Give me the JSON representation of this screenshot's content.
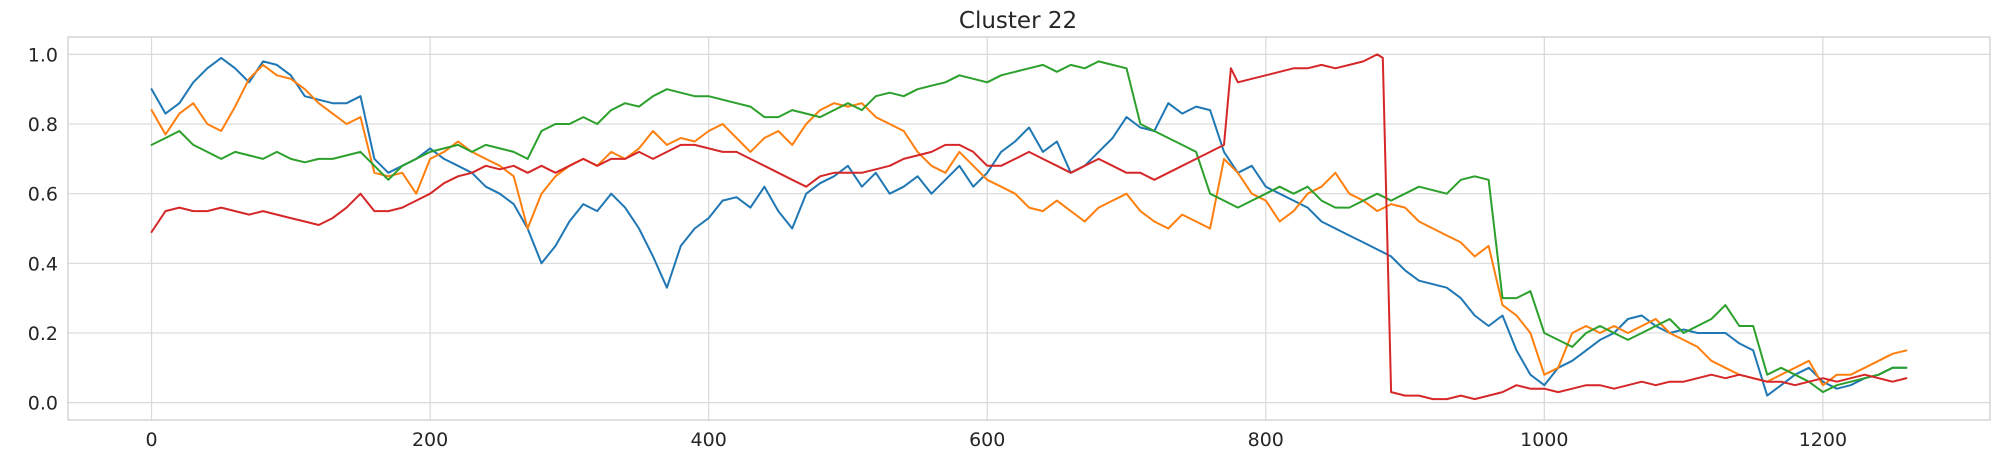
{
  "chart_data": {
    "type": "line",
    "title": "Cluster 22",
    "xlabel": "",
    "ylabel": "",
    "xlim": [
      -60,
      1320
    ],
    "ylim": [
      -0.05,
      1.05
    ],
    "xticks": [
      0,
      200,
      400,
      600,
      800,
      1000,
      1200
    ],
    "yticks": [
      0.0,
      0.2,
      0.4,
      0.6,
      0.8,
      1.0
    ],
    "xtick_labels": [
      "0",
      "200",
      "400",
      "600",
      "800",
      "1000",
      "1200"
    ],
    "ytick_labels": [
      "0.0",
      "0.2",
      "0.4",
      "0.6",
      "0.8",
      "1.0"
    ],
    "grid": true,
    "legend": "none",
    "series": [
      {
        "color": "#1f77b4",
        "x": [
          0,
          10,
          20,
          30,
          40,
          50,
          60,
          70,
          80,
          90,
          100,
          110,
          120,
          130,
          140,
          150,
          160,
          170,
          180,
          190,
          200,
          210,
          220,
          230,
          240,
          250,
          260,
          270,
          280,
          290,
          300,
          310,
          320,
          330,
          340,
          350,
          360,
          370,
          380,
          390,
          400,
          410,
          420,
          430,
          440,
          450,
          460,
          470,
          480,
          490,
          500,
          510,
          520,
          530,
          540,
          550,
          560,
          570,
          580,
          590,
          600,
          610,
          620,
          630,
          640,
          650,
          660,
          670,
          680,
          690,
          700,
          710,
          720,
          730,
          740,
          750,
          760,
          770,
          780,
          790,
          800,
          810,
          820,
          830,
          840,
          850,
          860,
          870,
          880,
          890,
          900,
          910,
          920,
          930,
          940,
          950,
          960,
          970,
          980,
          990,
          1000,
          1010,
          1020,
          1030,
          1040,
          1050,
          1060,
          1070,
          1080,
          1090,
          1100,
          1110,
          1120,
          1130,
          1140,
          1150,
          1160,
          1170,
          1180,
          1190,
          1200,
          1210,
          1220,
          1230,
          1240,
          1250,
          1260
        ],
        "y": [
          0.9,
          0.83,
          0.86,
          0.92,
          0.96,
          0.99,
          0.96,
          0.92,
          0.98,
          0.97,
          0.94,
          0.88,
          0.87,
          0.86,
          0.86,
          0.88,
          0.7,
          0.66,
          0.68,
          0.7,
          0.73,
          0.7,
          0.68,
          0.66,
          0.62,
          0.6,
          0.57,
          0.5,
          0.4,
          0.45,
          0.52,
          0.57,
          0.55,
          0.6,
          0.56,
          0.5,
          0.42,
          0.33,
          0.45,
          0.5,
          0.53,
          0.58,
          0.59,
          0.56,
          0.62,
          0.55,
          0.5,
          0.6,
          0.63,
          0.65,
          0.68,
          0.62,
          0.66,
          0.6,
          0.62,
          0.65,
          0.6,
          0.64,
          0.68,
          0.62,
          0.66,
          0.72,
          0.75,
          0.79,
          0.72,
          0.75,
          0.66,
          0.68,
          0.72,
          0.76,
          0.82,
          0.79,
          0.78,
          0.86,
          0.83,
          0.85,
          0.84,
          0.72,
          0.66,
          0.68,
          0.62,
          0.6,
          0.58,
          0.56,
          0.52,
          0.5,
          0.48,
          0.46,
          0.44,
          0.42,
          0.38,
          0.35,
          0.34,
          0.33,
          0.3,
          0.25,
          0.22,
          0.25,
          0.15,
          0.08,
          0.05,
          0.1,
          0.12,
          0.15,
          0.18,
          0.2,
          0.24,
          0.25,
          0.22,
          0.2,
          0.21,
          0.2,
          0.2,
          0.2,
          0.17,
          0.15,
          0.02,
          0.05,
          0.08,
          0.1,
          0.06,
          0.04,
          0.05,
          0.07,
          0.08,
          0.1,
          0.1
        ]
      },
      {
        "color": "#ff7f0e",
        "x": [
          0,
          10,
          20,
          30,
          40,
          50,
          60,
          70,
          80,
          90,
          100,
          110,
          120,
          130,
          140,
          150,
          160,
          170,
          180,
          190,
          200,
          210,
          220,
          230,
          240,
          250,
          260,
          270,
          280,
          290,
          300,
          310,
          320,
          330,
          340,
          350,
          360,
          370,
          380,
          390,
          400,
          410,
          420,
          430,
          440,
          450,
          460,
          470,
          480,
          490,
          500,
          510,
          520,
          530,
          540,
          550,
          560,
          570,
          580,
          590,
          600,
          610,
          620,
          630,
          640,
          650,
          660,
          670,
          680,
          690,
          700,
          710,
          720,
          730,
          740,
          750,
          760,
          770,
          780,
          790,
          800,
          810,
          820,
          830,
          840,
          850,
          860,
          870,
          880,
          890,
          900,
          910,
          920,
          930,
          940,
          950,
          960,
          970,
          980,
          990,
          1000,
          1010,
          1020,
          1030,
          1040,
          1050,
          1060,
          1070,
          1080,
          1090,
          1100,
          1110,
          1120,
          1130,
          1140,
          1150,
          1160,
          1170,
          1180,
          1190,
          1200,
          1210,
          1220,
          1230,
          1240,
          1250,
          1260
        ],
        "y": [
          0.84,
          0.77,
          0.83,
          0.86,
          0.8,
          0.78,
          0.85,
          0.93,
          0.97,
          0.94,
          0.93,
          0.9,
          0.86,
          0.83,
          0.8,
          0.82,
          0.66,
          0.65,
          0.66,
          0.6,
          0.7,
          0.72,
          0.75,
          0.72,
          0.7,
          0.68,
          0.65,
          0.5,
          0.6,
          0.65,
          0.68,
          0.7,
          0.68,
          0.72,
          0.7,
          0.73,
          0.78,
          0.74,
          0.76,
          0.75,
          0.78,
          0.8,
          0.76,
          0.72,
          0.76,
          0.78,
          0.74,
          0.8,
          0.84,
          0.86,
          0.85,
          0.86,
          0.82,
          0.8,
          0.78,
          0.72,
          0.68,
          0.66,
          0.72,
          0.68,
          0.64,
          0.62,
          0.6,
          0.56,
          0.55,
          0.58,
          0.55,
          0.52,
          0.56,
          0.58,
          0.6,
          0.55,
          0.52,
          0.5,
          0.54,
          0.52,
          0.5,
          0.7,
          0.66,
          0.6,
          0.58,
          0.52,
          0.55,
          0.6,
          0.62,
          0.66,
          0.6,
          0.58,
          0.55,
          0.57,
          0.56,
          0.52,
          0.5,
          0.48,
          0.46,
          0.42,
          0.45,
          0.28,
          0.25,
          0.2,
          0.08,
          0.1,
          0.2,
          0.22,
          0.2,
          0.22,
          0.2,
          0.22,
          0.24,
          0.2,
          0.18,
          0.16,
          0.12,
          0.1,
          0.08,
          0.07,
          0.06,
          0.08,
          0.1,
          0.12,
          0.05,
          0.08,
          0.08,
          0.1,
          0.12,
          0.14,
          0.15
        ]
      },
      {
        "color": "#2ca02c",
        "x": [
          0,
          10,
          20,
          30,
          40,
          50,
          60,
          70,
          80,
          90,
          100,
          110,
          120,
          130,
          140,
          150,
          160,
          170,
          180,
          190,
          200,
          210,
          220,
          230,
          240,
          250,
          260,
          270,
          280,
          290,
          300,
          310,
          320,
          330,
          340,
          350,
          360,
          370,
          380,
          390,
          400,
          410,
          420,
          430,
          440,
          450,
          460,
          470,
          480,
          490,
          500,
          510,
          520,
          530,
          540,
          550,
          560,
          570,
          580,
          590,
          600,
          610,
          620,
          630,
          640,
          650,
          660,
          670,
          680,
          690,
          700,
          710,
          720,
          730,
          740,
          750,
          760,
          770,
          780,
          790,
          800,
          810,
          820,
          830,
          840,
          850,
          860,
          870,
          880,
          890,
          900,
          910,
          920,
          930,
          940,
          950,
          960,
          970,
          980,
          990,
          1000,
          1010,
          1020,
          1030,
          1040,
          1050,
          1060,
          1070,
          1080,
          1090,
          1100,
          1110,
          1120,
          1130,
          1140,
          1150,
          1160,
          1170,
          1180,
          1190,
          1200,
          1210,
          1220,
          1230,
          1240,
          1250,
          1260
        ],
        "y": [
          0.74,
          0.76,
          0.78,
          0.74,
          0.72,
          0.7,
          0.72,
          0.71,
          0.7,
          0.72,
          0.7,
          0.69,
          0.7,
          0.7,
          0.71,
          0.72,
          0.68,
          0.64,
          0.68,
          0.7,
          0.72,
          0.73,
          0.74,
          0.72,
          0.74,
          0.73,
          0.72,
          0.7,
          0.78,
          0.8,
          0.8,
          0.82,
          0.8,
          0.84,
          0.86,
          0.85,
          0.88,
          0.9,
          0.89,
          0.88,
          0.88,
          0.87,
          0.86,
          0.85,
          0.82,
          0.82,
          0.84,
          0.83,
          0.82,
          0.84,
          0.86,
          0.84,
          0.88,
          0.89,
          0.88,
          0.9,
          0.91,
          0.92,
          0.94,
          0.93,
          0.92,
          0.94,
          0.95,
          0.96,
          0.97,
          0.95,
          0.97,
          0.96,
          0.98,
          0.97,
          0.96,
          0.8,
          0.78,
          0.76,
          0.74,
          0.72,
          0.6,
          0.58,
          0.56,
          0.58,
          0.6,
          0.62,
          0.6,
          0.62,
          0.58,
          0.56,
          0.56,
          0.58,
          0.6,
          0.58,
          0.6,
          0.62,
          0.61,
          0.6,
          0.64,
          0.65,
          0.64,
          0.3,
          0.3,
          0.32,
          0.2,
          0.18,
          0.16,
          0.2,
          0.22,
          0.2,
          0.18,
          0.2,
          0.22,
          0.24,
          0.2,
          0.22,
          0.24,
          0.28,
          0.22,
          0.22,
          0.08,
          0.1,
          0.08,
          0.06,
          0.03,
          0.05,
          0.06,
          0.07,
          0.08,
          0.1,
          0.1
        ]
      },
      {
        "color": "#d62728",
        "x": [
          0,
          10,
          20,
          30,
          40,
          50,
          60,
          70,
          80,
          90,
          100,
          110,
          120,
          130,
          140,
          150,
          160,
          170,
          180,
          190,
          200,
          210,
          220,
          230,
          240,
          250,
          260,
          270,
          280,
          290,
          300,
          310,
          320,
          330,
          340,
          350,
          360,
          370,
          380,
          390,
          400,
          410,
          420,
          430,
          440,
          450,
          460,
          470,
          480,
          490,
          500,
          510,
          520,
          530,
          540,
          550,
          560,
          570,
          580,
          590,
          600,
          610,
          620,
          630,
          640,
          650,
          660,
          670,
          680,
          690,
          700,
          710,
          720,
          730,
          740,
          750,
          760,
          770,
          775,
          780,
          790,
          800,
          810,
          820,
          830,
          840,
          850,
          860,
          870,
          880,
          884,
          890,
          900,
          910,
          920,
          930,
          940,
          950,
          960,
          970,
          980,
          990,
          1000,
          1010,
          1020,
          1030,
          1040,
          1050,
          1060,
          1070,
          1080,
          1090,
          1100,
          1110,
          1120,
          1130,
          1140,
          1150,
          1160,
          1170,
          1180,
          1190,
          1200,
          1210,
          1220,
          1230,
          1240,
          1250,
          1260
        ],
        "y": [
          0.49,
          0.55,
          0.56,
          0.55,
          0.55,
          0.56,
          0.55,
          0.54,
          0.55,
          0.54,
          0.53,
          0.52,
          0.51,
          0.53,
          0.56,
          0.6,
          0.55,
          0.55,
          0.56,
          0.58,
          0.6,
          0.63,
          0.65,
          0.66,
          0.68,
          0.67,
          0.68,
          0.66,
          0.68,
          0.66,
          0.68,
          0.7,
          0.68,
          0.7,
          0.7,
          0.72,
          0.7,
          0.72,
          0.74,
          0.74,
          0.73,
          0.72,
          0.72,
          0.7,
          0.68,
          0.66,
          0.64,
          0.62,
          0.65,
          0.66,
          0.66,
          0.66,
          0.67,
          0.68,
          0.7,
          0.71,
          0.72,
          0.74,
          0.74,
          0.72,
          0.68,
          0.68,
          0.7,
          0.72,
          0.7,
          0.68,
          0.66,
          0.68,
          0.7,
          0.68,
          0.66,
          0.66,
          0.64,
          0.66,
          0.68,
          0.7,
          0.72,
          0.74,
          0.96,
          0.92,
          0.93,
          0.94,
          0.95,
          0.96,
          0.96,
          0.97,
          0.96,
          0.97,
          0.98,
          1.0,
          0.99,
          0.03,
          0.02,
          0.02,
          0.01,
          0.01,
          0.02,
          0.01,
          0.02,
          0.03,
          0.05,
          0.04,
          0.04,
          0.03,
          0.04,
          0.05,
          0.05,
          0.04,
          0.05,
          0.06,
          0.05,
          0.06,
          0.06,
          0.07,
          0.08,
          0.07,
          0.08,
          0.07,
          0.06,
          0.06,
          0.05,
          0.06,
          0.07,
          0.06,
          0.07,
          0.08,
          0.07,
          0.06,
          0.07
        ]
      }
    ]
  }
}
